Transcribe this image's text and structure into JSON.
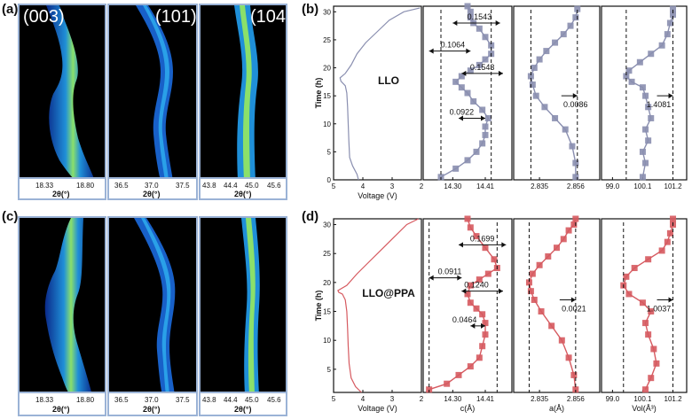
{
  "figure": {
    "panel_labels": [
      "(a)",
      "(b)",
      "(c)",
      "(d)"
    ]
  },
  "heatmaps": {
    "peak_labels": [
      "(003)",
      "(101)",
      "(104)"
    ],
    "axis_title": "2θ(°)",
    "panel_ticks": [
      [
        "18.33",
        "18.80"
      ],
      [
        "36.5",
        "37.0",
        "37.5"
      ],
      [
        "43.8",
        "44.4",
        "45.0",
        "45.6"
      ]
    ]
  },
  "chart_data": [
    {
      "type": "line",
      "panel": "b",
      "sample": "LLO",
      "ylabel": "Time (h)",
      "ylim": [
        0,
        31
      ],
      "yticks": [
        0,
        5,
        10,
        15,
        20,
        25,
        30
      ],
      "color": "#8a8fb0",
      "subplots": [
        {
          "name": "voltage",
          "xlabel": "Voltage (V)",
          "xlim": [
            5,
            2
          ],
          "xticks": [
            "5",
            "4",
            "3",
            "2"
          ],
          "x": [
            4.15,
            4.2,
            4.35,
            4.45,
            4.48,
            4.5,
            4.52,
            4.55,
            4.6,
            4.75,
            4.78,
            4.6,
            4.4,
            4.2,
            3.9,
            3.5,
            3.1,
            2.6,
            2.05
          ],
          "time": [
            0,
            1,
            2.5,
            4,
            7,
            10,
            13,
            15.5,
            16.8,
            17.6,
            18.2,
            19,
            20.5,
            22.5,
            24.5,
            26.5,
            28.5,
            30,
            30.7
          ]
        },
        {
          "name": "c",
          "xlabel": "",
          "xticks": [
            "14.30",
            "14.41"
          ],
          "xlim": [
            14.2,
            14.5
          ],
          "x": [
            14.26,
            14.31,
            14.35,
            14.38,
            14.4,
            14.41,
            14.41,
            14.42,
            14.4,
            14.37,
            14.35,
            14.33,
            14.31,
            14.33,
            14.36,
            14.39,
            14.41,
            14.43,
            14.43,
            14.41,
            14.39,
            14.37,
            14.36,
            14.36,
            14.35
          ],
          "time": [
            0.5,
            2,
            3.5,
            5,
            6.5,
            8,
            9.5,
            11,
            12.5,
            14,
            15.5,
            16.5,
            17.5,
            18.5,
            19.5,
            20.5,
            21.5,
            22.5,
            24,
            25.5,
            27,
            28,
            29,
            30,
            31
          ],
          "annotations": [
            "0.1543",
            "0.1064",
            "0.1543",
            "0.0922"
          ]
        },
        {
          "name": "a",
          "xlabel": "",
          "xticks": [
            "2.835",
            "2.856"
          ],
          "xlim": [
            2.82,
            2.87
          ],
          "x": [
            2.856,
            2.856,
            2.854,
            2.85,
            2.844,
            2.838,
            2.833,
            2.831,
            2.83,
            2.832,
            2.835,
            2.839,
            2.844,
            2.849,
            2.853,
            2.856,
            2.857
          ],
          "time": [
            0.5,
            3,
            6,
            9,
            11,
            13,
            15,
            17,
            18.5,
            20,
            21.5,
            23,
            24.5,
            26,
            27.5,
            29,
            30.5
          ],
          "annotations": [
            "0.0086"
          ]
        },
        {
          "name": "vol",
          "xlabel": "",
          "xticks": [
            "99.0",
            "100.1",
            "101.2"
          ],
          "xlim": [
            98.6,
            101.7
          ],
          "x": [
            100.1,
            100.2,
            100.1,
            100.3,
            100.2,
            100.4,
            100.3,
            100.2,
            100.1,
            99.7,
            99.5,
            99.6,
            100.0,
            100.4,
            100.8,
            101.0,
            101.1,
            101.2,
            101.2
          ],
          "time": [
            0.5,
            3,
            5,
            7,
            9,
            11,
            13,
            15,
            16.5,
            17.5,
            18.5,
            19.5,
            21,
            22.5,
            24,
            26,
            28,
            29.5,
            30.5
          ],
          "annotations": [
            "1.4081"
          ]
        }
      ],
      "inline_label": "LLO"
    },
    {
      "type": "line",
      "panel": "d",
      "sample": "LLO@PPA",
      "ylabel": "Time (h)",
      "ylim": [
        1,
        31
      ],
      "yticks": [
        5,
        10,
        15,
        20,
        25,
        30
      ],
      "color": "#d65a60",
      "subplots": [
        {
          "name": "voltage",
          "xlabel": "Voltage (V)",
          "xlim": [
            5,
            2
          ],
          "xticks": [
            "5",
            "4",
            "3",
            "2"
          ],
          "x": [
            4.05,
            4.25,
            4.4,
            4.47,
            4.5,
            4.52,
            4.55,
            4.6,
            4.7,
            4.82,
            4.85,
            4.55,
            4.2,
            3.8,
            3.3,
            2.9,
            2.5,
            2.1
          ],
          "time": [
            1,
            2,
            3.5,
            6,
            9,
            12,
            15,
            17,
            18,
            18.3,
            18.6,
            19.5,
            21.5,
            23.5,
            26,
            28,
            30,
            31
          ]
        },
        {
          "name": "c",
          "xlabel": "c(Å)",
          "xticks": [
            "14.30",
            "14.41"
          ],
          "xlim": [
            14.2,
            14.5
          ],
          "x": [
            14.22,
            14.28,
            14.32,
            14.36,
            14.39,
            14.4,
            14.41,
            14.41,
            14.4,
            14.38,
            14.36,
            14.35,
            14.36,
            14.39,
            14.42,
            14.45,
            14.44,
            14.41,
            14.38,
            14.36,
            14.35
          ],
          "time": [
            1.5,
            2.5,
            4,
            5.5,
            7,
            9,
            11,
            13,
            14.5,
            15.5,
            16.5,
            18,
            19.5,
            20.5,
            21.5,
            22.5,
            24,
            26,
            28,
            29.5,
            31
          ],
          "annotations": [
            "0.1699",
            "0.0911",
            "0.1240",
            "0.0464"
          ]
        },
        {
          "name": "a",
          "xlabel": "a(Å)",
          "xticks": [
            "2.835",
            "2.856"
          ],
          "xlim": [
            2.82,
            2.87
          ],
          "x": [
            2.856,
            2.855,
            2.852,
            2.848,
            2.842,
            2.836,
            2.832,
            2.83,
            2.829,
            2.831,
            2.835,
            2.84,
            2.845,
            2.849,
            2.852,
            2.855,
            2.856
          ],
          "time": [
            1.5,
            4,
            7,
            10,
            12.5,
            15,
            17,
            18.5,
            20,
            21.5,
            23,
            24.5,
            26,
            27.5,
            29,
            30,
            31
          ],
          "annotations": [
            "0.0021"
          ]
        },
        {
          "name": "vol",
          "xlabel": "Vol(Å³)",
          "xticks": [
            "99.0",
            "100.1",
            "101.2"
          ],
          "xlim": [
            98.6,
            101.7
          ],
          "x": [
            100.2,
            100.4,
            100.6,
            100.5,
            100.3,
            100.2,
            100.4,
            100.1,
            99.6,
            99.4,
            99.5,
            99.8,
            100.3,
            100.8,
            101.0,
            101.1,
            101.2,
            101.2
          ],
          "time": [
            1.5,
            3.5,
            6,
            8.5,
            11,
            13,
            15,
            16.5,
            18,
            19.5,
            21,
            22.5,
            24,
            25.5,
            27,
            28.5,
            30,
            31
          ],
          "annotations": [
            "1.0037"
          ]
        }
      ],
      "inline_label": "LLO@PPA"
    }
  ]
}
